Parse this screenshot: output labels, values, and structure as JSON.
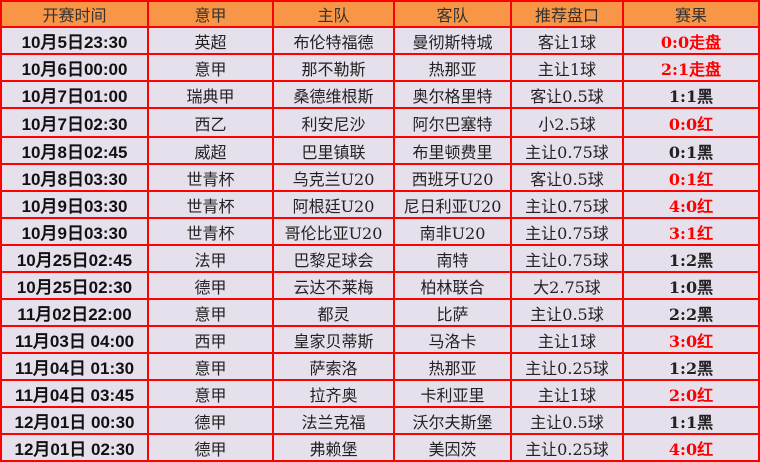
{
  "headers": [
    "开赛时间",
    "意甲",
    "主队",
    "客队",
    "推荐盘口",
    "赛果"
  ],
  "colors": {
    "header_bg": "#f79646",
    "row_bg": "#e6e0ec",
    "border": "#ff0000",
    "win_text": "#ff0000",
    "loss_text": "#222222"
  },
  "rows": [
    {
      "time": "10月5日23:30",
      "league": "英超",
      "home": "布伦特福德",
      "away": "曼彻斯特城",
      "tip": "客让1球",
      "result": "0:0走盘",
      "highlight": true
    },
    {
      "time": "10月6日00:00",
      "league": "意甲",
      "home": "那不勒斯",
      "away": "热那亚",
      "tip": "主让1球",
      "result": "2:1走盘",
      "highlight": true
    },
    {
      "time": "10月7日01:00",
      "league": "瑞典甲",
      "home": "桑德维根斯",
      "away": "奥尔格里特",
      "tip": "客让0.5球",
      "result": "1:1黑",
      "highlight": false
    },
    {
      "time": "10月7日02:30",
      "league": "西乙",
      "home": "利安尼沙",
      "away": "阿尔巴塞特",
      "tip": "小2.5球",
      "result": "0:0红",
      "highlight": true
    },
    {
      "time": "10月8日02:45",
      "league": "威超",
      "home": "巴里镇联",
      "away": "布里顿费里",
      "tip": "主让0.75球",
      "result": "0:1黑",
      "highlight": false
    },
    {
      "time": "10月8日03:30",
      "league": "世青杯",
      "home": "乌克兰U20",
      "away": "西班牙U20",
      "tip": "客让0.5球",
      "result": "0:1红",
      "highlight": true
    },
    {
      "time": "10月9日03:30",
      "league": "世青杯",
      "home": "阿根廷U20",
      "away": "尼日利亚U20",
      "tip": "主让0.75球",
      "result": "4:0红",
      "highlight": true
    },
    {
      "time": "10月9日03:30",
      "league": "世青杯",
      "home": "哥伦比亚U20",
      "away": "南非U20",
      "tip": "主让0.75球",
      "result": "3:1红",
      "highlight": true
    },
    {
      "time": "10月25日02:45",
      "league": "法甲",
      "home": "巴黎足球会",
      "away": "南特",
      "tip": "主让0.75球",
      "result": "1:2黑",
      "highlight": false
    },
    {
      "time": "10月25日02:30",
      "league": "德甲",
      "home": "云达不莱梅",
      "away": "柏林联合",
      "tip": "大2.75球",
      "result": "1:0黑",
      "highlight": false
    },
    {
      "time": "11月02日22:00",
      "league": "意甲",
      "home": "都灵",
      "away": "比萨",
      "tip": "主让0.5球",
      "result": "2:2黑",
      "highlight": false
    },
    {
      "time": "11月03日 04:00",
      "league": "西甲",
      "home": "皇家贝蒂斯",
      "away": "马洛卡",
      "tip": "主让1球",
      "result": "3:0红",
      "highlight": true
    },
    {
      "time": "11月04日 01:30",
      "league": "意甲",
      "home": "萨索洛",
      "away": "热那亚",
      "tip": "主让0.25球",
      "result": "1:2黑",
      "highlight": false
    },
    {
      "time": "11月04日 03:45",
      "league": "意甲",
      "home": "拉齐奥",
      "away": "卡利亚里",
      "tip": "主让1球",
      "result": "2:0红",
      "highlight": true
    },
    {
      "time": "12月01日 00:30",
      "league": "德甲",
      "home": "法兰克福",
      "away": "沃尔夫斯堡",
      "tip": "主让0.5球",
      "result": "1:1黑",
      "highlight": false
    },
    {
      "time": "12月01日 02:30",
      "league": "德甲",
      "home": "弗赖堡",
      "away": "美因茨",
      "tip": "主让0.25球",
      "result": "4:0红",
      "highlight": true
    }
  ]
}
